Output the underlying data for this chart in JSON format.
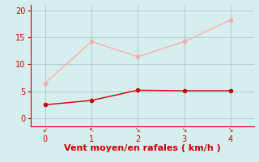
{
  "x": [
    0,
    1,
    2,
    3,
    4
  ],
  "y_moyen": [
    2.5,
    3.3,
    5.2,
    5.1,
    5.1
  ],
  "y_rafales": [
    6.5,
    14.2,
    11.4,
    14.2,
    18.2
  ],
  "color_moyen": "#cc0000",
  "color_rafales": "#ffaaaa",
  "xlabel": "Vent moyen/en rafales ( km/h )",
  "xlabel_color": "#cc0000",
  "xlabel_fontsize": 8,
  "tick_color": "#cc0000",
  "background_color": "#d6eeee",
  "grid_color": "#aacece",
  "ylim": [
    -1.5,
    21
  ],
  "xlim": [
    -0.3,
    4.5
  ],
  "yticks": [
    0,
    5,
    10,
    15,
    20
  ],
  "xticks": [
    0,
    1,
    2,
    3,
    4
  ],
  "linewidth": 1.0,
  "markersize": 3,
  "tick_labelsize": 7
}
